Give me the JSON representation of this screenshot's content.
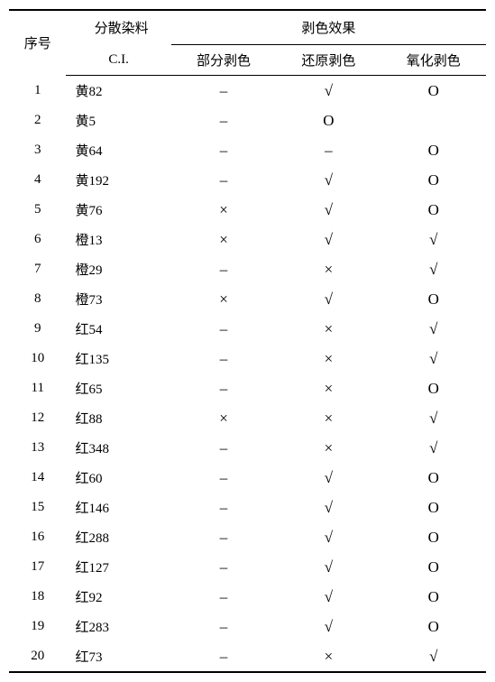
{
  "table": {
    "headers": {
      "seq": "序号",
      "dye": "分散染料",
      "dye_ci": "C.I.",
      "effect_group": "剥色效果",
      "effect_partial": "部分剥色",
      "effect_reduction": "还原剥色",
      "effect_oxidation": "氧化剥色"
    },
    "symbols": {
      "dash": "–",
      "check": "√",
      "circle": "O",
      "cross": "×",
      "empty": ""
    },
    "rows": [
      {
        "seq": "1",
        "dye": "黄82",
        "e1": "dash",
        "e2": "check",
        "e3": "circle"
      },
      {
        "seq": "2",
        "dye": "黄5",
        "e1": "dash",
        "e2": "circle",
        "e3": "empty"
      },
      {
        "seq": "3",
        "dye": "黄64",
        "e1": "dash",
        "e2": "dash",
        "e3": "circle"
      },
      {
        "seq": "4",
        "dye": "黄192",
        "e1": "dash",
        "e2": "check",
        "e3": "circle"
      },
      {
        "seq": "5",
        "dye": "黄76",
        "e1": "cross",
        "e2": "check",
        "e3": "circle"
      },
      {
        "seq": "6",
        "dye": "橙13",
        "e1": "cross",
        "e2": "check",
        "e3": "check"
      },
      {
        "seq": "7",
        "dye": "橙29",
        "e1": "dash",
        "e2": "cross",
        "e3": "check"
      },
      {
        "seq": "8",
        "dye": "橙73",
        "e1": "cross",
        "e2": "check",
        "e3": "circle"
      },
      {
        "seq": "9",
        "dye": "红54",
        "e1": "dash",
        "e2": "cross",
        "e3": "check"
      },
      {
        "seq": "10",
        "dye": "红135",
        "e1": "dash",
        "e2": "cross",
        "e3": "check"
      },
      {
        "seq": "11",
        "dye": "红65",
        "e1": "dash",
        "e2": "cross",
        "e3": "circle"
      },
      {
        "seq": "12",
        "dye": "红88",
        "e1": "cross",
        "e2": "cross",
        "e3": "check"
      },
      {
        "seq": "13",
        "dye": "红348",
        "e1": "dash",
        "e2": "cross",
        "e3": "check"
      },
      {
        "seq": "14",
        "dye": "红60",
        "e1": "dash",
        "e2": "check",
        "e3": "circle"
      },
      {
        "seq": "15",
        "dye": "红146",
        "e1": "dash",
        "e2": "check",
        "e3": "circle"
      },
      {
        "seq": "16",
        "dye": "红288",
        "e1": "dash",
        "e2": "check",
        "e3": "circle"
      },
      {
        "seq": "17",
        "dye": "红127",
        "e1": "dash",
        "e2": "check",
        "e3": "circle"
      },
      {
        "seq": "18",
        "dye": "红92",
        "e1": "dash",
        "e2": "check",
        "e3": "circle"
      },
      {
        "seq": "19",
        "dye": "红283",
        "e1": "dash",
        "e2": "check",
        "e3": "circle"
      },
      {
        "seq": "20",
        "dye": "红73",
        "e1": "dash",
        "e2": "cross",
        "e3": "check"
      }
    ],
    "style": {
      "border_color": "#000000",
      "background_color": "#ffffff",
      "font_family": "SimSun",
      "header_fontsize": 15,
      "cell_fontsize": 15,
      "symbol_fontsize": 17,
      "row_padding_v": 6,
      "seq_col_width": 60,
      "dye_col_width": 110,
      "effect_col_width": 110,
      "top_border_width": 2,
      "bottom_border_width": 2,
      "inner_border_width": 1
    }
  }
}
